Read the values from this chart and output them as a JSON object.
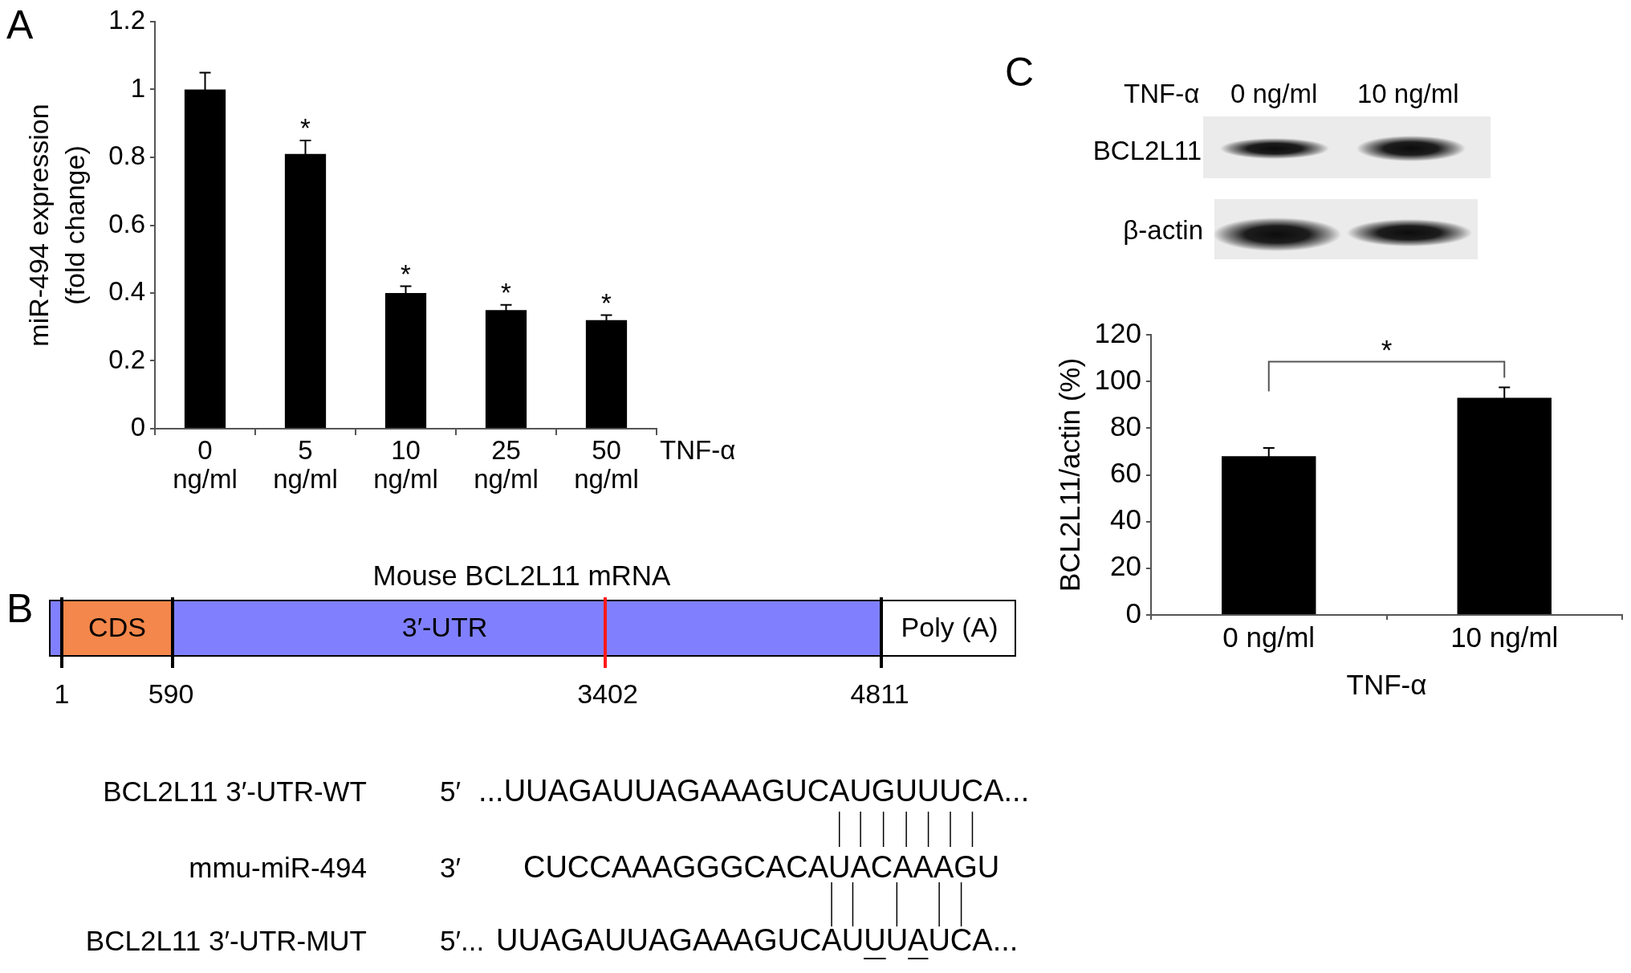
{
  "chart_data": [
    {
      "type": "bar",
      "categories": [
        "0\nng/ml",
        "5\nng/ml",
        "10\nng/ml",
        "25\nng/ml",
        "50\nng/ml"
      ],
      "values": [
        1,
        0.81,
        0.4,
        0.35,
        0.32
      ],
      "errors": [
        0.05,
        0.04,
        0.02,
        0.015,
        0.015
      ],
      "color": "#000000",
      "xlabel": "TNF-α",
      "ylabel": "miR-494 expression\n(fold change)",
      "ylim": [
        0,
        1.2
      ],
      "yticks": [
        0,
        0.2,
        0.4,
        0.6,
        0.8,
        1,
        1.2
      ],
      "annotations": [
        "A",
        "*",
        "*",
        "*",
        "*"
      ]
    },
    {
      "type": "other",
      "title": "Mouse BCL2L11 mRNA",
      "categories": [
        "CDS",
        "3′-UTR",
        "Poly (A)"
      ],
      "colors": [
        "#f4874b",
        "#8080ff",
        "#ffffff"
      ],
      "annotations": [
        "B",
        "1",
        "590",
        "3402",
        "4811",
        "BCL2L11 3′-UTR-WT",
        "5′",
        "...UUAGAUUAGAAAGUCAUGUUUCA...",
        "mmu-miR-494",
        "3′",
        "CUCCAAAGGGCACAUACAAAGU",
        "BCL2L11 3′-UTR-MUT",
        "5′...",
        "UUAGAUUAGAAAGUCAUUUAUCA..."
      ]
    },
    {
      "type": "other",
      "annotations": [
        "C",
        "TNF-α",
        "0 ng/ml",
        "10 ng/ml",
        "BCL2L11",
        "β-actin"
      ]
    },
    {
      "type": "bar",
      "categories": [
        "0 ng/ml",
        "10 ng/ml"
      ],
      "values": [
        68,
        93
      ],
      "errors": [
        3.5,
        4.5
      ],
      "color": "#000000",
      "xlabel": "TNF-α",
      "ylabel": "BCL2L11/actin (%)",
      "ylim": [
        0,
        120
      ],
      "yticks": [
        0,
        20,
        40,
        60,
        80,
        100,
        120
      ],
      "annotations": [
        "*"
      ]
    }
  ]
}
